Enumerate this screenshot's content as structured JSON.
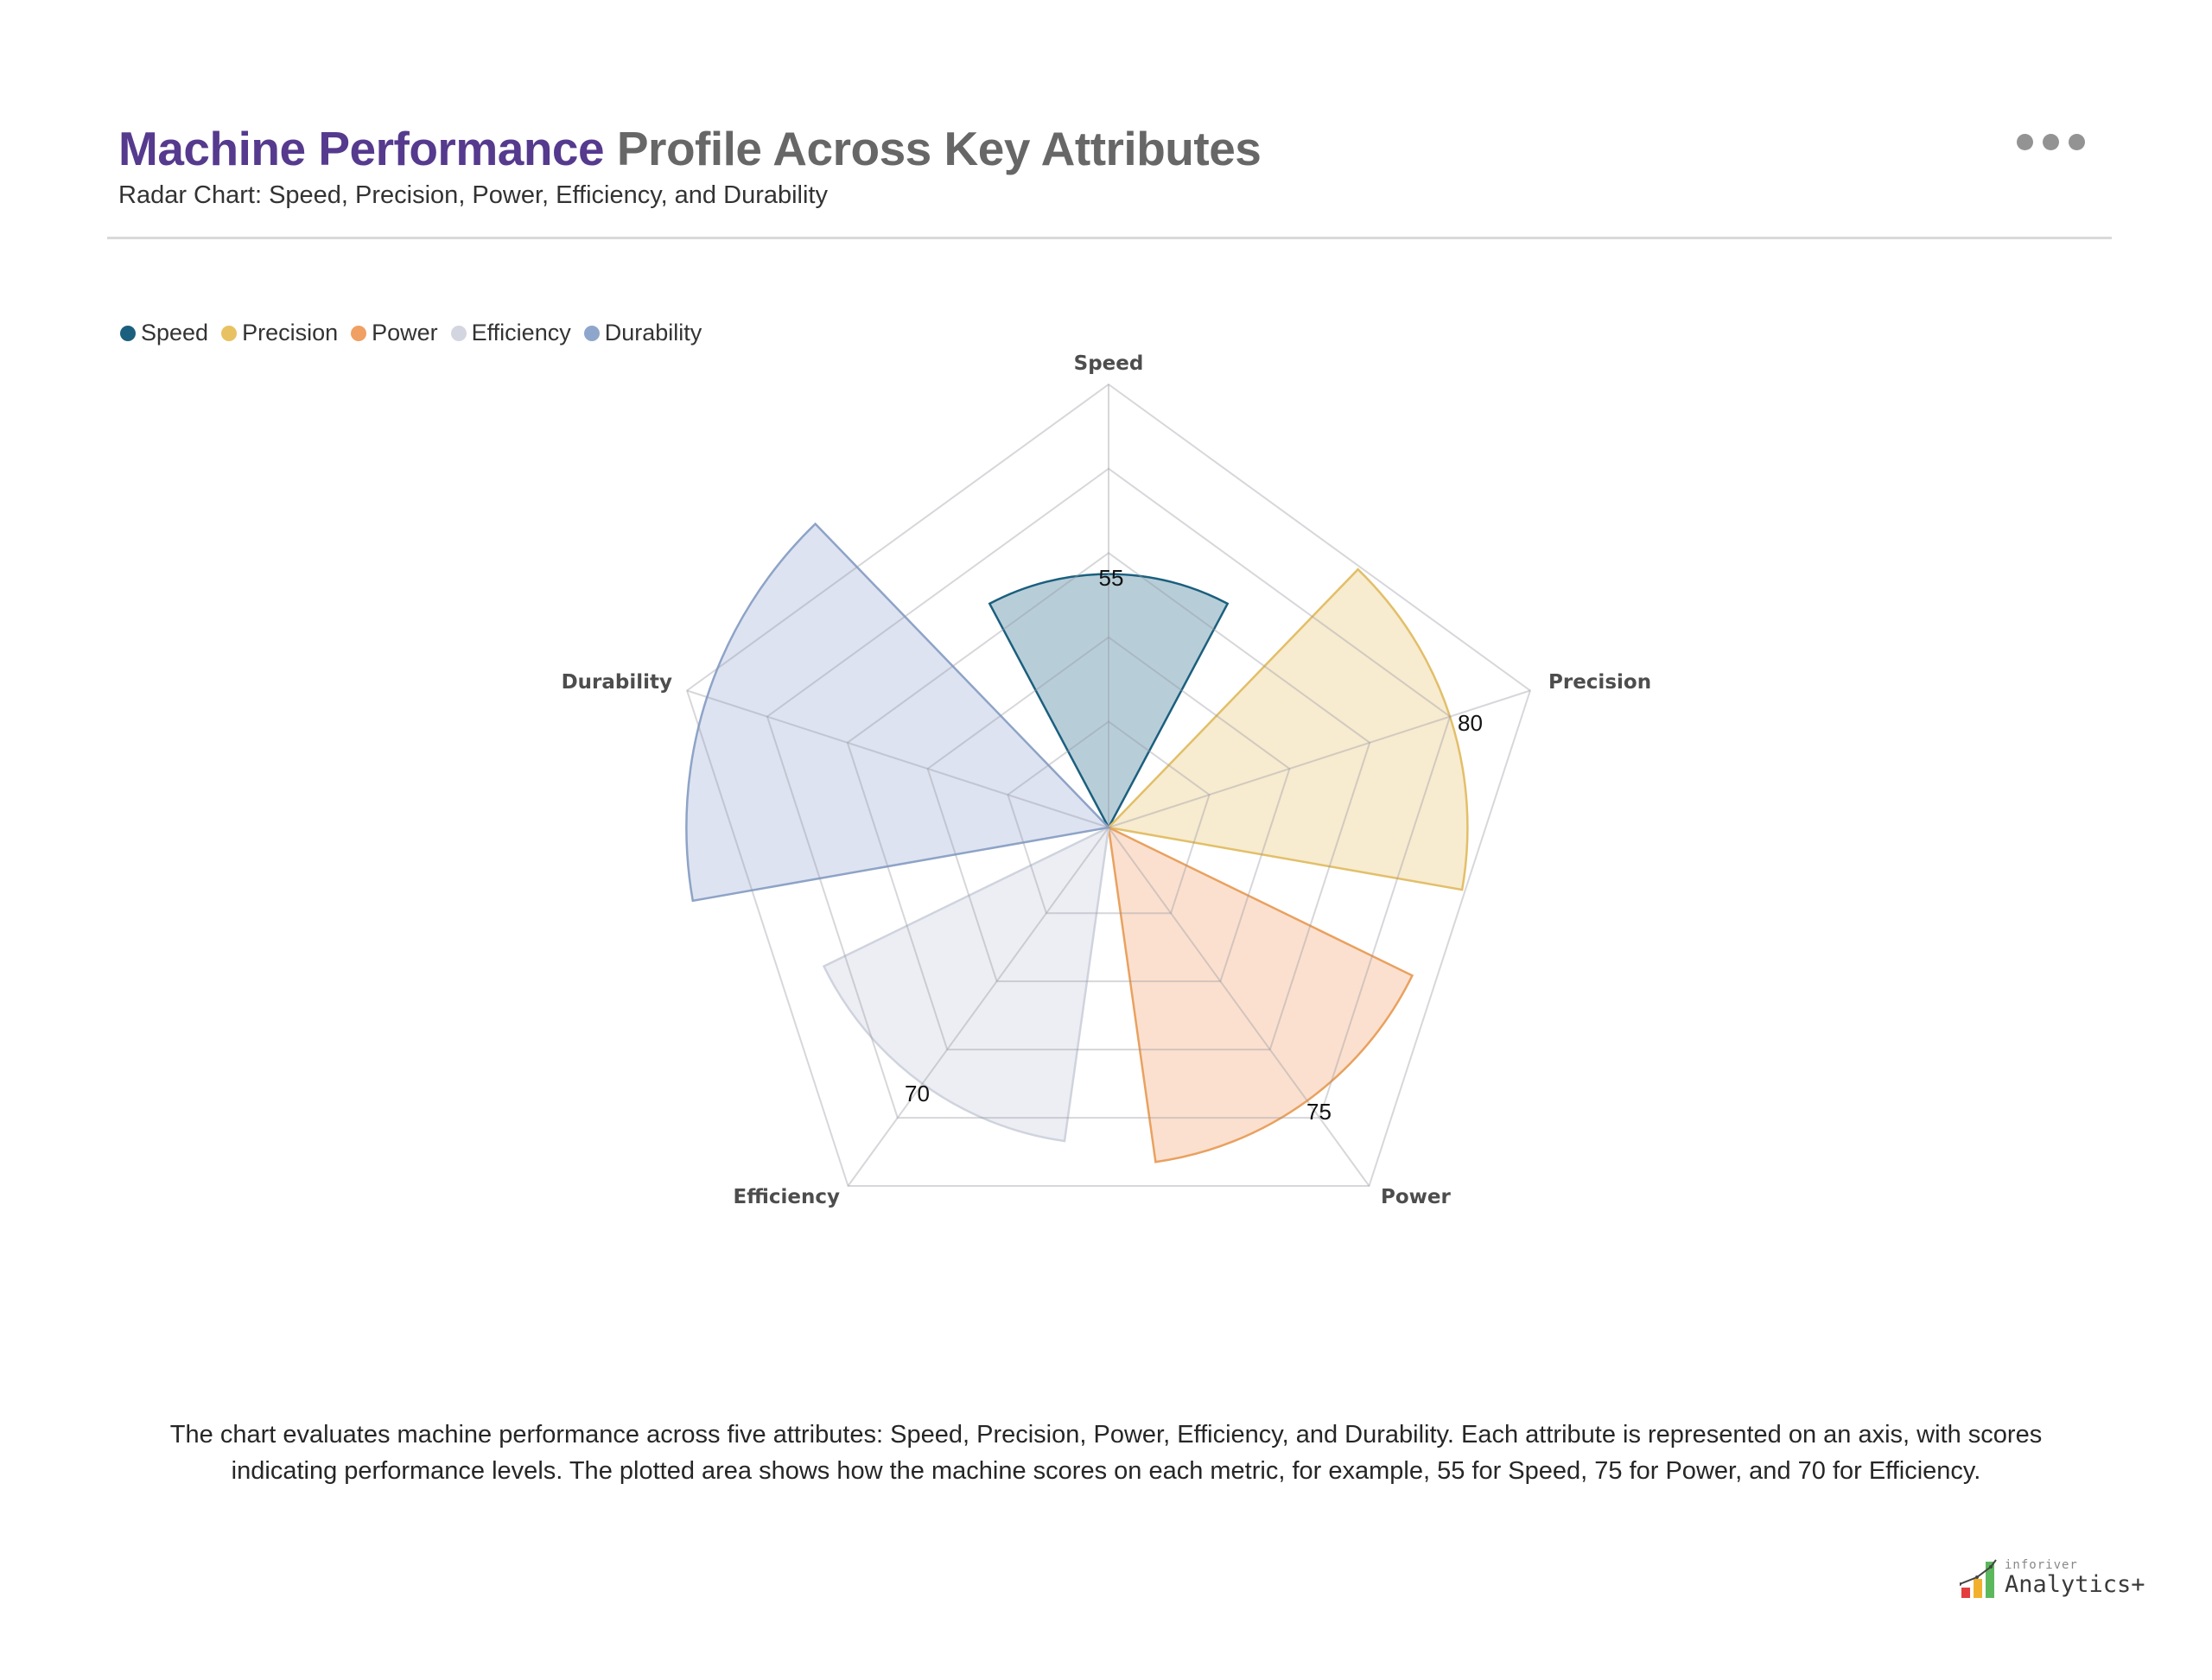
{
  "header": {
    "title_accent": "Machine Performance",
    "title_rest": "Profile Across Key Attributes",
    "subtitle": "Radar Chart: Speed, Precision, Power, Efficiency, and Durability",
    "menu_icon": "more-horizontal-icon"
  },
  "legend": {
    "items": [
      {
        "label": "Speed",
        "color": "#1b5f7e"
      },
      {
        "label": "Precision",
        "color": "#e8c262"
      },
      {
        "label": "Power",
        "color": "#f0a062"
      },
      {
        "label": "Efficiency",
        "color": "#d3d6e0"
      },
      {
        "label": "Durability",
        "color": "#8fa6cc"
      }
    ]
  },
  "chart_data": {
    "type": "radar",
    "subtype": "polar-wedge (nightingale)",
    "title": "Machine Performance Profile Across Key Attributes",
    "subtitle": "Radar Chart: Speed, Precision, Power, Efficiency, and Durability",
    "categories": [
      "Speed",
      "Precision",
      "Power",
      "Efficiency",
      "Durability"
    ],
    "values": [
      55,
      80,
      75,
      70,
      95
    ],
    "value_labels_shown": {
      "Speed": "55",
      "Precision": "80",
      "Power": "75",
      "Efficiency": "70"
    },
    "series_colors": {
      "Speed": {
        "fill": "#b7ced8",
        "stroke": "#1b5f7e"
      },
      "Precision": {
        "fill": "#f7ebd0",
        "stroke": "#e2bf68"
      },
      "Power": {
        "fill": "#fbe0cf",
        "stroke": "#e9a15f"
      },
      "Efficiency": {
        "fill": "#eceef3",
        "stroke": "#cfd3de"
      },
      "Durability": {
        "fill": "#dde3f1",
        "stroke": "#8ea3c7"
      }
    },
    "grid": {
      "shape": "pentagon",
      "rings": 5,
      "range": [
        0,
        100
      ]
    },
    "legend_position": "top-left"
  },
  "axis_labels": {
    "speed": "Speed",
    "precision": "Precision",
    "power": "Power",
    "efficiency": "Efficiency",
    "durability": "Durability"
  },
  "value_labels": {
    "speed": "55",
    "precision": "80",
    "power": "75",
    "efficiency": "70"
  },
  "description": "The chart evaluates machine performance across five attributes: Speed, Precision, Power, Efficiency, and Durability. Each attribute is represented on an axis, with scores indicating performance levels. The plotted area shows how the machine scores on each metric, for example, 55 for Speed, 75 for Power, and 70 for Efficiency.",
  "branding": {
    "small": "inforiver",
    "big": "Analytics+"
  }
}
